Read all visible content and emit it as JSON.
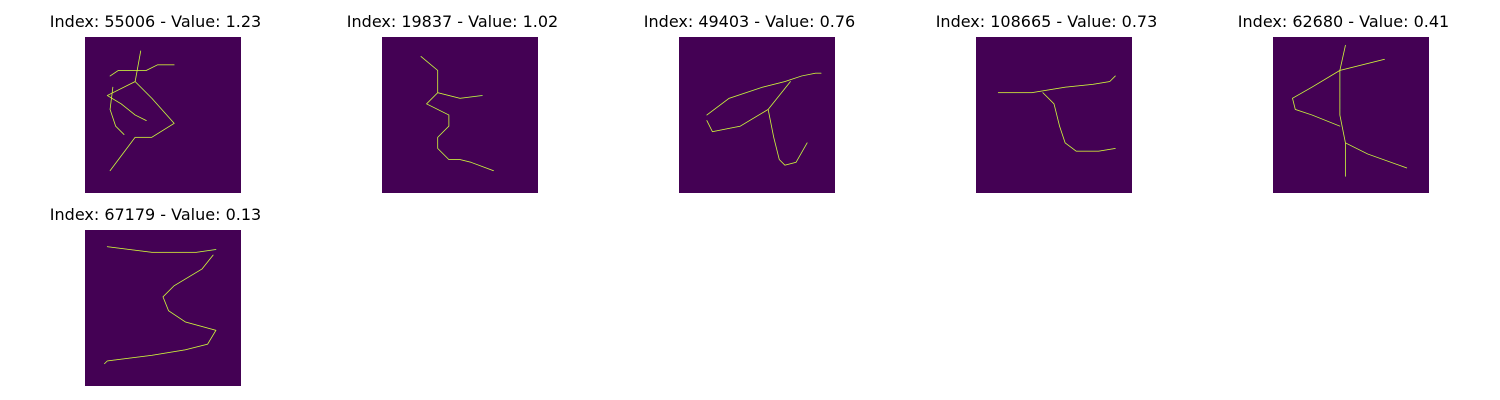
{
  "chart_data": {
    "type": "image-grid",
    "colormap": "viridis",
    "colors": {
      "background": "#440154",
      "stroke_edge": "#35b779",
      "stroke": "#fde725"
    },
    "panels": [
      {
        "title": "Index: 55006 - Value: 1.23",
        "index": 55006,
        "value": 1.23,
        "glyph": "star-shaped handwritten character"
      },
      {
        "title": "Index: 19837 - Value: 1.02",
        "index": 19837,
        "value": 1.02,
        "glyph": "zigzag handwritten character"
      },
      {
        "title": "Index: 49403 - Value: 0.76",
        "index": 49403,
        "value": 0.76,
        "glyph": "looped handwritten character"
      },
      {
        "title": "Index: 108665 - Value: 0.73",
        "index": 108665,
        "value": 0.73,
        "glyph": "hook handwritten character"
      },
      {
        "title": "Index: 62680 - Value: 0.41",
        "index": 62680,
        "value": 0.41,
        "glyph": "crossed handwritten character"
      },
      {
        "title": "Index: 67179 - Value: 0.13",
        "index": 67179,
        "value": 0.13,
        "glyph": "handwritten 3"
      }
    ]
  }
}
